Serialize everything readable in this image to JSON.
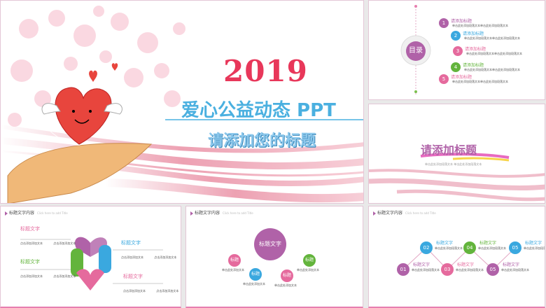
{
  "cover": {
    "year": "2019",
    "title": "爱心公益动态 PPT",
    "subtitle": "请添加您的标题"
  },
  "toc": {
    "heading": "目录",
    "items": [
      {
        "number": "1",
        "title": "请添加标题",
        "text": "单击此处添加段落文本单击此处添加段落文本"
      },
      {
        "number": "2",
        "title": "请添加标题",
        "text": "单击此处添加段落文本单击此处添加段落文本"
      },
      {
        "number": "3",
        "title": "请添加标题",
        "text": "单击此处添加段落文本单击此处添加段落文本"
      },
      {
        "number": "4",
        "title": "请添加标题",
        "text": "单击此处添加段落文本单击此处添加段落文本"
      },
      {
        "number": "5",
        "title": "请添加标题",
        "text": "单击此处添加段落文本单击此处添加段落文本"
      }
    ]
  },
  "section": {
    "title": "请添加标题",
    "text": "单击此处添加段落文本  单击此处添加段落文本"
  },
  "slides": [
    {
      "header": "标题文字内容",
      "header_en": "Click here to add Title",
      "labels": [
        "标题文字",
        "标题文字",
        "标题文字",
        "标题文字"
      ],
      "texts": [
        "点击添加添加文本 点击添加添加文本",
        "点击添加添加文本 点击添加添加文本",
        "点击添加添加文本 点击添加添加文本",
        "点击添加添加文本 点击添加添加文本"
      ]
    },
    {
      "header": "标题文字内容",
      "header_en": "Click here to add Title",
      "center": "标题文字",
      "labels": [
        "标题",
        "标题",
        "标题",
        "标题"
      ],
      "texts": [
        "单击此处添加文本",
        "单击此处添加文本",
        "单击此处添加文本",
        "单击此处添加文本"
      ]
    },
    {
      "header": "标题文字内容",
      "header_en": "Click here to add Title",
      "numbers": [
        "01",
        "02",
        "03",
        "04",
        "05",
        "05"
      ],
      "labels": [
        "标题文字",
        "标题文字",
        "标题文字",
        "标题文字",
        "标题文字",
        "标题文字"
      ],
      "texts": [
        "单击此处添加段落文本",
        "单击此处添加段落文本",
        "单击此处添加段落文本",
        "单击此处添加段落文本",
        "单击此处添加段落文本",
        "单击此处添加段落文本"
      ]
    }
  ]
}
